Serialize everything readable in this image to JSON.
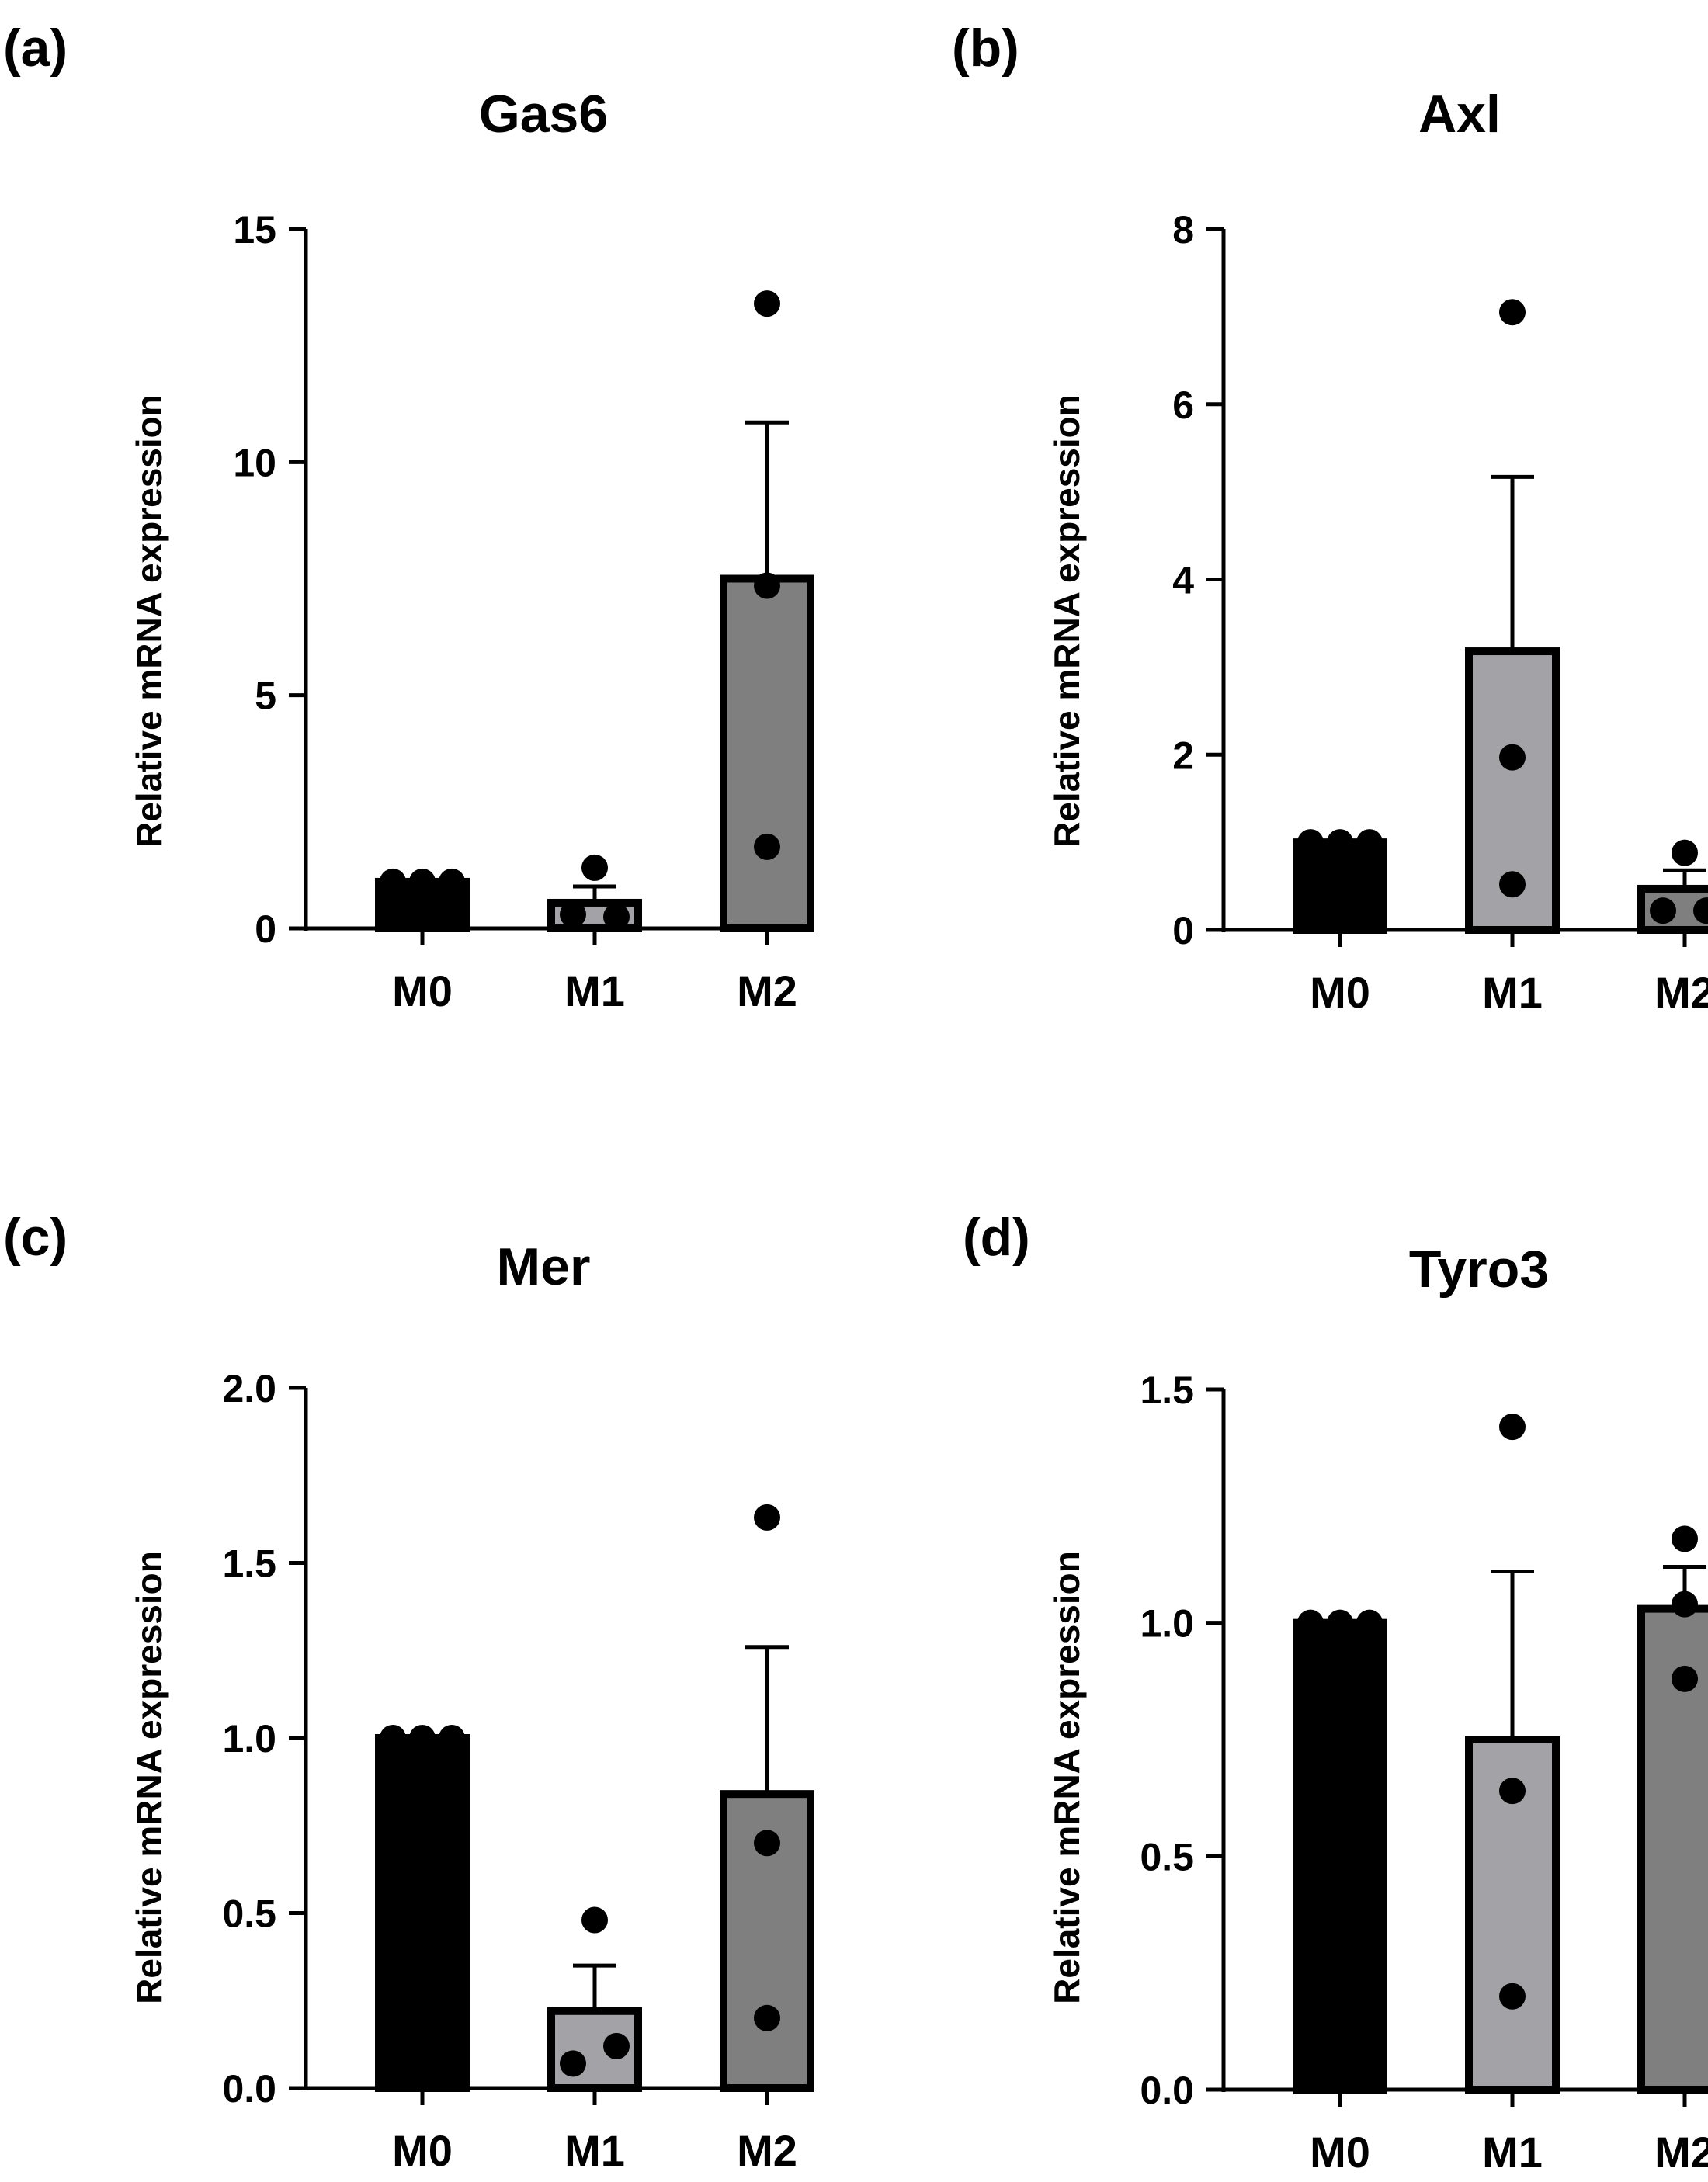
{
  "colors": {
    "M0": "#000000",
    "M1": "#a3a3a7",
    "M2": "#7f7f7f",
    "axis": "#000000",
    "point": "#000000"
  },
  "chart_data": [
    {
      "panel": "(a)",
      "type": "bar",
      "title": "Gas6",
      "ylabel": "Relative mRNA expression",
      "xlabel": "",
      "categories": [
        "M0",
        "M1",
        "M2"
      ],
      "values": [
        1.0,
        0.55,
        7.5
      ],
      "error_upper": [
        1.0,
        0.9,
        10.85
      ],
      "points": [
        [
          1.0,
          1.0,
          1.0
        ],
        [
          1.3,
          0.3,
          0.25
        ],
        [
          13.4,
          7.35,
          1.75
        ]
      ],
      "ylim": [
        0,
        15
      ],
      "yticks": [
        0,
        5,
        10,
        15
      ],
      "ytick_labels": [
        "0",
        "5",
        "10",
        "15"
      ]
    },
    {
      "panel": "(b)",
      "type": "bar",
      "title": "Axl",
      "ylabel": "Relative mRNA expression",
      "xlabel": "",
      "categories": [
        "M0",
        "M1",
        "M2"
      ],
      "values": [
        1.0,
        3.18,
        0.47
      ],
      "error_upper": [
        1.0,
        5.17,
        0.68
      ],
      "points": [
        [
          1.0,
          1.0,
          1.0
        ],
        [
          7.05,
          1.97,
          0.52
        ],
        [
          0.88,
          0.22,
          0.22
        ]
      ],
      "ylim": [
        0,
        8
      ],
      "yticks": [
        0,
        2,
        4,
        6,
        8
      ],
      "ytick_labels": [
        "0",
        "2",
        "4",
        "6",
        "8"
      ]
    },
    {
      "panel": "(c)",
      "type": "bar",
      "title": "Mer",
      "ylabel": "Relative mRNA expression",
      "xlabel": "",
      "categories": [
        "M0",
        "M1",
        "M2"
      ],
      "values": [
        1.0,
        0.22,
        0.84
      ],
      "error_upper": [
        1.0,
        0.35,
        1.26
      ],
      "points": [
        [
          1.0,
          1.0,
          1.0
        ],
        [
          0.48,
          0.07,
          0.12
        ],
        [
          1.63,
          0.7,
          0.2
        ]
      ],
      "ylim": [
        0,
        2.0
      ],
      "yticks": [
        0,
        0.5,
        1.0,
        1.5,
        2.0
      ],
      "ytick_labels": [
        "0.0",
        "0.5",
        "1.0",
        "1.5",
        "2.0"
      ]
    },
    {
      "panel": "(d)",
      "type": "bar",
      "title": "Tyro3",
      "ylabel": "Relative mRNA expression",
      "xlabel": "",
      "categories": [
        "M0",
        "M1",
        "M2"
      ],
      "values": [
        1.0,
        0.75,
        1.03
      ],
      "error_upper": [
        1.0,
        1.11,
        1.12
      ],
      "points": [
        [
          1.0,
          1.0,
          1.0
        ],
        [
          1.42,
          0.64,
          0.2
        ],
        [
          1.18,
          1.04,
          0.88
        ]
      ],
      "ylim": [
        0,
        1.5
      ],
      "yticks": [
        0,
        0.5,
        1.0,
        1.5
      ],
      "ytick_labels": [
        "0.0",
        "0.5",
        "1.0",
        "1.5"
      ]
    }
  ]
}
